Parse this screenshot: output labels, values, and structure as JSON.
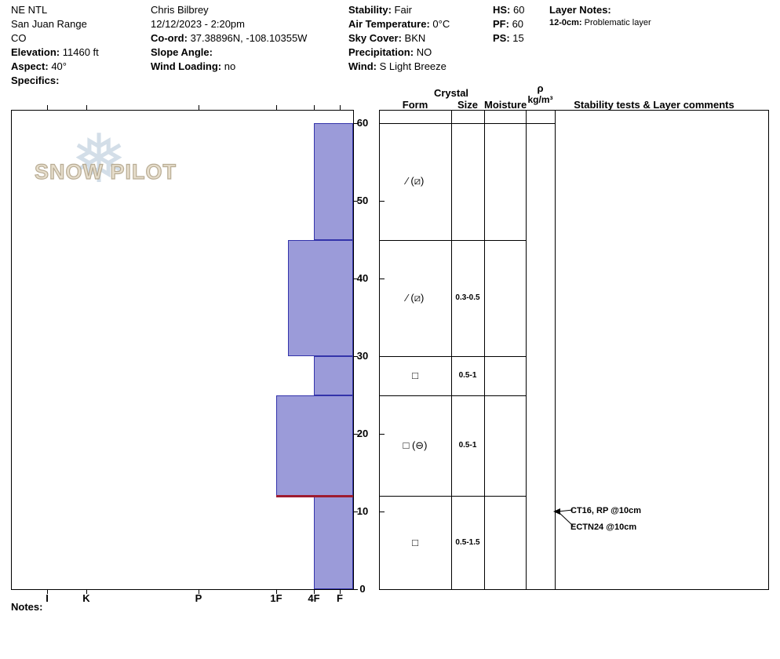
{
  "header": {
    "location": {
      "name": "NE NTL",
      "range": "San Juan Range",
      "state": "CO",
      "elevation_label": "Elevation:",
      "elevation": "11460 ft",
      "aspect_label": "Aspect:",
      "aspect": "40°",
      "specifics_label": "Specifics:",
      "specifics": ""
    },
    "observer": {
      "name": "Chris Bilbrey",
      "datetime": "12/12/2023 - 2:20pm",
      "coord_label": "Co-ord:",
      "coord": "37.38896N, -108.10355W",
      "slope_angle_label": "Slope Angle:",
      "slope_angle": "",
      "wind_loading_label": "Wind Loading:",
      "wind_loading": "no"
    },
    "conditions": {
      "stability_label": "Stability:",
      "stability": "Fair",
      "air_temp_label": "Air Temperature:",
      "air_temp": "0°C",
      "sky_label": "Sky Cover:",
      "sky": "BKN",
      "precip_label": "Precipitation:",
      "precip": "NO",
      "wind_label": "Wind:",
      "wind": "S Light Breeze"
    },
    "measurements": {
      "hs_label": "HS:",
      "hs": "60",
      "pf_label": "PF:",
      "pf": "60",
      "ps_label": "PS:",
      "ps": "15"
    },
    "layer_notes": {
      "title": "Layer Notes:",
      "note_depth": "12-0cm:",
      "note_text": "Problematic layer"
    }
  },
  "watermark": {
    "snowflake": "❅",
    "text": "SNOW PILOT"
  },
  "table": {
    "crystal": "Crystal",
    "form": "Form",
    "size": "Size",
    "moisture": "Moisture",
    "rho": "ρ",
    "rho_unit": "kg/m³",
    "comments": "Stability tests & Layer comments"
  },
  "axis": {
    "bottom_labels": [
      "I",
      "K",
      "P",
      "1F",
      "4F",
      "F"
    ],
    "depth_labels": [
      "60",
      "50",
      "40",
      "30",
      "20",
      "10",
      "0"
    ]
  },
  "footer": {
    "notes_label": "Notes:"
  },
  "colors": {
    "bar_fill": "#9b9bd9",
    "bar_border": "#3333aa",
    "problem_line": "#9e1b30"
  },
  "chart_data": {
    "type": "bar",
    "ylim": [
      0,
      60
    ],
    "hardness_scale": [
      "I",
      "K",
      "P",
      "1F",
      "4F",
      "F"
    ],
    "layers": [
      {
        "depth_top_cm": 60,
        "depth_bottom_cm": 45,
        "hardness": "4F",
        "form": "∕ (⧄)",
        "size": "",
        "moisture": ""
      },
      {
        "depth_top_cm": 45,
        "depth_bottom_cm": 30,
        "hardness": "4F+",
        "form": "∕ (⧄)",
        "size": "0.3-0.5",
        "moisture": ""
      },
      {
        "depth_top_cm": 30,
        "depth_bottom_cm": 25,
        "hardness": "4F",
        "form": "□",
        "size": "0.5-1",
        "moisture": ""
      },
      {
        "depth_top_cm": 25,
        "depth_bottom_cm": 12,
        "hardness": "1F",
        "form": "□ (⊖)",
        "size": "0.5-1",
        "moisture": ""
      },
      {
        "depth_top_cm": 12,
        "depth_bottom_cm": 0,
        "hardness": "4F",
        "form": "□",
        "size": "0.5-1.5",
        "moisture": ""
      }
    ],
    "problem_layer_depth_cm": 12,
    "stability_tests": [
      {
        "label": "CT16, RP @10cm",
        "depth_cm": 10
      },
      {
        "label": "ECTN24 @10cm",
        "depth_cm": 10
      }
    ]
  }
}
